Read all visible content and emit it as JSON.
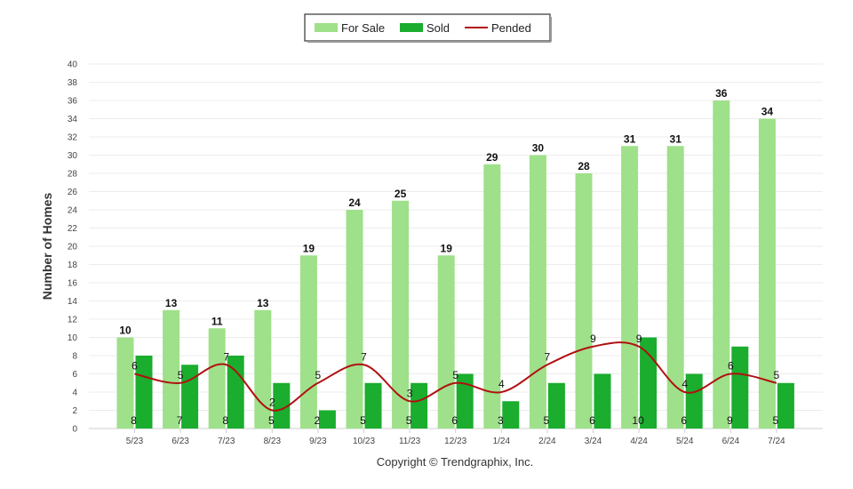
{
  "chart_data": {
    "type": "bar",
    "title": "",
    "ylabel": "Number of Homes",
    "xlabel": "",
    "ylim": [
      0,
      40
    ],
    "ytick_step": 2,
    "categories": [
      "5/23",
      "6/23",
      "7/23",
      "8/23",
      "9/23",
      "10/23",
      "11/23",
      "12/23",
      "1/24",
      "2/24",
      "3/24",
      "4/24",
      "5/24",
      "6/24",
      "7/24"
    ],
    "series": [
      {
        "name": "For Sale",
        "kind": "bar",
        "color": "#9fe08a",
        "values": [
          10,
          13,
          11,
          13,
          19,
          24,
          25,
          19,
          29,
          30,
          28,
          31,
          31,
          36,
          34
        ]
      },
      {
        "name": "Sold",
        "kind": "bar",
        "color": "#1aad2e",
        "values": [
          8,
          7,
          8,
          5,
          2,
          5,
          5,
          6,
          3,
          5,
          6,
          10,
          6,
          9,
          5
        ]
      },
      {
        "name": "Pended",
        "kind": "line",
        "color": "#b01010",
        "values": [
          6,
          5,
          7,
          2,
          5,
          7,
          3,
          5,
          4,
          7,
          9,
          9,
          4,
          6,
          5
        ]
      }
    ],
    "legend": [
      "For Sale",
      "Sold",
      "Pended"
    ],
    "legend_position": "top-center",
    "grid": true,
    "footer": "Copyright © Trendgraphix, Inc."
  }
}
